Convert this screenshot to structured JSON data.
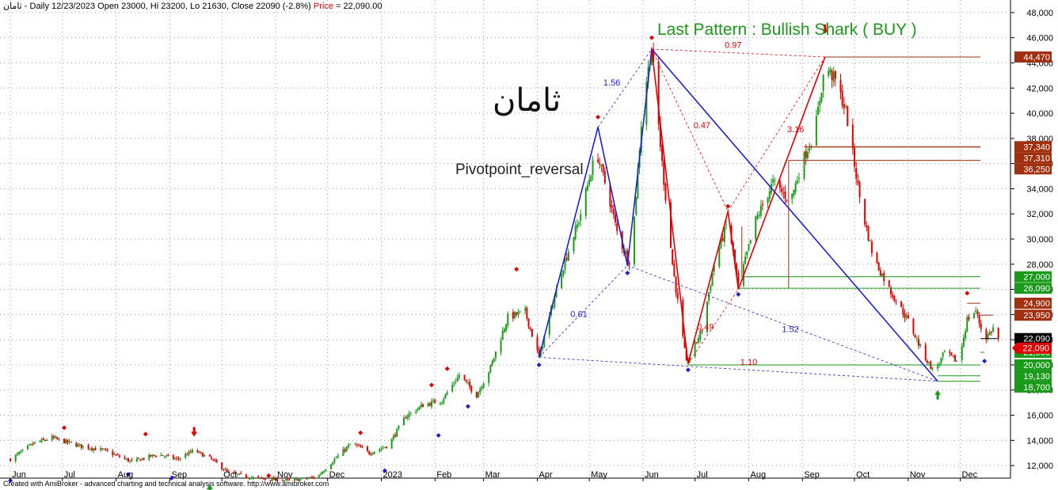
{
  "header": {
    "ticker": "ثامان",
    "info": " - Daily 12/23/2023 Open 23000, Hi 23200, Lo 21630, Close 22090 (-2.8%)",
    "price_label": "Price",
    "price_value": " = 22,090.00"
  },
  "title": "Last Pattern : Bullish Shark ( BUY )",
  "symbol_name": "ثامان",
  "subtitle": "Pivotpoint_reversal",
  "footer": "Created with AmiBroker - advanced charting and technical analysis software. http://www.amibroker.com",
  "colors": {
    "up": "#1a9a1a",
    "down": "#e00000",
    "blue_pattern": "#1f1fd0",
    "red_pattern": "#e00000",
    "support": "#1a9a1a",
    "resistance": "#a03010",
    "last_price": "#000000"
  },
  "chart_data": {
    "type": "candlestick",
    "y_range": [
      11000,
      49000
    ],
    "y_ticks": [
      12000,
      14000,
      16000,
      18000,
      20000,
      22000,
      24000,
      26000,
      28000,
      30000,
      32000,
      34000,
      36000,
      38000,
      40000,
      42000,
      44000,
      46000,
      48000
    ],
    "y_tick_labels": [
      "12,000",
      "14,000",
      "16,000",
      "18,000",
      "20,000",
      "22,000",
      "24,000",
      "26,000",
      "28,000",
      "30,000",
      "32,000",
      "34,000",
      "36,000",
      "38,000",
      "40,000",
      "42,000",
      "44,000",
      "46,000",
      "48,000"
    ],
    "x_axis": [
      {
        "date": "2022-06-01",
        "label": "Jun"
      },
      {
        "date": "2022-07-01",
        "label": "Jul"
      },
      {
        "date": "2022-08-01",
        "label": "Aug"
      },
      {
        "date": "2022-09-01",
        "label": "Sep"
      },
      {
        "date": "2022-10-01",
        "label": "Oct"
      },
      {
        "date": "2022-11-01",
        "label": "Nov"
      },
      {
        "date": "2022-12-01",
        "label": "Dec"
      },
      {
        "date": "2023-01-01",
        "label": "2023"
      },
      {
        "date": "2023-02-01",
        "label": "Feb"
      },
      {
        "date": "2023-03-01",
        "label": "Mar"
      },
      {
        "date": "2023-04-01",
        "label": "Apr"
      },
      {
        "date": "2023-05-01",
        "label": "May"
      },
      {
        "date": "2023-06-01",
        "label": "Jun"
      },
      {
        "date": "2023-07-01",
        "label": "Jul"
      },
      {
        "date": "2023-08-01",
        "label": "Aug"
      },
      {
        "date": "2023-09-01",
        "label": "Sep"
      },
      {
        "date": "2023-10-01",
        "label": "Oct"
      },
      {
        "date": "2023-11-01",
        "label": "Nov"
      },
      {
        "date": "2023-12-01",
        "label": "Dec"
      }
    ],
    "close_path": [
      [
        "2022-06-01",
        12500
      ],
      [
        "2022-06-15",
        13800
      ],
      [
        "2022-06-25",
        14200
      ],
      [
        "2022-07-10",
        13600
      ],
      [
        "2022-07-25",
        13200
      ],
      [
        "2022-08-10",
        12300
      ],
      [
        "2022-08-25",
        12900
      ],
      [
        "2022-09-05",
        12500
      ],
      [
        "2022-09-15",
        13200
      ],
      [
        "2022-09-25",
        12500
      ],
      [
        "2022-10-05",
        11400
      ],
      [
        "2022-10-20",
        11000
      ],
      [
        "2022-11-10",
        10800
      ],
      [
        "2022-11-25",
        11100
      ],
      [
        "2022-12-05",
        12500
      ],
      [
        "2022-12-15",
        13800
      ],
      [
        "2022-12-25",
        13000
      ],
      [
        "2023-01-05",
        13600
      ],
      [
        "2023-01-15",
        15900
      ],
      [
        "2023-01-25",
        16800
      ],
      [
        "2023-02-05",
        17200
      ],
      [
        "2023-02-15",
        19200
      ],
      [
        "2023-02-25",
        17600
      ],
      [
        "2023-03-05",
        19800
      ],
      [
        "2023-03-15",
        23800
      ],
      [
        "2023-03-25",
        24200
      ],
      [
        "2023-04-02",
        20600
      ],
      [
        "2023-04-15",
        27500
      ],
      [
        "2023-04-25",
        31500
      ],
      [
        "2023-05-05",
        37000
      ],
      [
        "2023-05-12",
        33500
      ],
      [
        "2023-05-18",
        30000
      ],
      [
        "2023-05-25",
        28000
      ],
      [
        "2023-06-01",
        41000
      ],
      [
        "2023-06-06",
        45100
      ],
      [
        "2023-06-12",
        36000
      ],
      [
        "2023-06-18",
        28000
      ],
      [
        "2023-06-26",
        20100
      ],
      [
        "2023-07-05",
        22800
      ],
      [
        "2023-07-12",
        28000
      ],
      [
        "2023-07-20",
        31500
      ],
      [
        "2023-07-26",
        26200
      ],
      [
        "2023-08-05",
        31500
      ],
      [
        "2023-08-15",
        34500
      ],
      [
        "2023-08-25",
        33000
      ],
      [
        "2023-09-01",
        36200
      ],
      [
        "2023-09-08",
        38500
      ],
      [
        "2023-09-14",
        43800
      ],
      [
        "2023-09-20",
        42600
      ],
      [
        "2023-09-26",
        40200
      ],
      [
        "2023-10-05",
        32500
      ],
      [
        "2023-10-12",
        28500
      ],
      [
        "2023-10-22",
        25800
      ],
      [
        "2023-11-01",
        23500
      ],
      [
        "2023-11-10",
        20800
      ],
      [
        "2023-11-16",
        19400
      ],
      [
        "2023-11-22",
        21000
      ],
      [
        "2023-11-30",
        20200
      ],
      [
        "2023-12-05",
        23600
      ],
      [
        "2023-12-10",
        24300
      ],
      [
        "2023-12-15",
        22000
      ],
      [
        "2023-12-20",
        22900
      ],
      [
        "2023-12-23",
        22090
      ]
    ],
    "pattern_blue": {
      "points": [
        [
          "2023-04-02",
          20600
        ],
        [
          "2023-05-06",
          38900
        ],
        [
          "2023-05-23",
          27900
        ],
        [
          "2023-06-06",
          45100
        ],
        [
          "2023-11-18",
          18700
        ]
      ],
      "ratios": [
        {
          "text": "1.56",
          "at": [
            "2023-05-14",
            42200
          ]
        },
        {
          "text": "0.61",
          "at": [
            "2023-04-25",
            23800
          ]
        },
        {
          "text": "1.52",
          "at": [
            "2023-08-25",
            22600
          ]
        }
      ]
    },
    "pattern_red": {
      "points": [
        [
          "2023-06-06",
          45100
        ],
        [
          "2023-06-27",
          20100
        ],
        [
          "2023-07-20",
          32200
        ],
        [
          "2023-07-26",
          26000
        ],
        [
          "2023-09-14",
          44470
        ]
      ],
      "ratios": [
        {
          "text": "0.97",
          "at": [
            "2023-07-23",
            45200
          ]
        },
        {
          "text": "0.47",
          "at": [
            "2023-07-05",
            38800
          ]
        },
        {
          "text": "3.16",
          "at": [
            "2023-08-28",
            38500
          ]
        },
        {
          "text": "0.49",
          "at": [
            "2023-07-07",
            22800
          ]
        },
        {
          "text": "1.10",
          "at": [
            "2023-08-01",
            20000
          ]
        }
      ]
    },
    "levels": [
      {
        "value": 44470,
        "label": "44,470",
        "color": "#a03010",
        "from": "2023-09-14"
      },
      {
        "value": 37340,
        "label": "37,340",
        "color": "#a03010",
        "from": "2023-09-02"
      },
      {
        "value": 37310,
        "label": "37,310",
        "color": "#a03010",
        "from": "2023-09-02"
      },
      {
        "value": 36250,
        "label": "36,250",
        "color": "#a03010",
        "from": "2023-08-24"
      },
      {
        "value": 27000,
        "label": "27,000",
        "color": "#1a9a1a",
        "from": "2023-07-28"
      },
      {
        "value": 26090,
        "label": "26,090",
        "color": "#1a9a1a",
        "from": "2023-07-26"
      },
      {
        "value": 24900,
        "label": "24,900",
        "color": "#a03010",
        "from": "2023-12-05"
      },
      {
        "value": 23950,
        "label": "23,950",
        "color": "#a03010",
        "from": "2023-12-20"
      },
      {
        "value": 22090,
        "label": "22,090",
        "color": "#000000",
        "from": "2023-12-23"
      },
      {
        "value": 21000,
        "label": "21,000",
        "color": "#1a9a1a",
        "from": "2023-12-15"
      },
      {
        "value": 20000,
        "label": "20,000",
        "color": "#1a9a1a",
        "from": "2023-06-27"
      },
      {
        "value": 19130,
        "label": "19,130",
        "color": "#1a9a1a",
        "from": "2023-11-18"
      },
      {
        "value": 18700,
        "label": "18,700",
        "color": "#1a9a1a",
        "from": "2023-11-18"
      }
    ],
    "price_marker": {
      "value": 22090,
      "label": "22,090"
    },
    "pivots_high": [
      [
        "2022-07-02",
        15000
      ],
      [
        "2022-08-18",
        14500
      ],
      [
        "2022-10-28",
        11200
      ],
      [
        "2022-12-20",
        14600
      ],
      [
        "2023-02-08",
        19700
      ],
      [
        "2023-01-30",
        18400
      ],
      [
        "2023-03-20",
        27600
      ],
      [
        "2023-05-06",
        39700
      ],
      [
        "2023-06-06",
        46000
      ],
      [
        "2023-07-20",
        32600
      ],
      [
        "2023-12-05",
        25700
      ]
    ],
    "pivots_low": [
      [
        "2022-06-01",
        10800
      ],
      [
        "2022-08-08",
        11300
      ],
      [
        "2022-09-02",
        11000
      ],
      [
        "2023-01-03",
        11600
      ],
      [
        "2023-02-03",
        14400
      ],
      [
        "2023-02-20",
        16700
      ],
      [
        "2023-04-02",
        20000
      ],
      [
        "2023-05-23",
        27300
      ],
      [
        "2023-06-27",
        19600
      ],
      [
        "2023-07-26",
        25600
      ],
      [
        "2023-12-15",
        20300
      ]
    ],
    "arrows_up": [
      [
        "2022-09-24",
        10500
      ],
      [
        "2023-11-18",
        18000
      ]
    ],
    "arrows_down": [
      [
        "2022-09-15",
        14300
      ],
      [
        "2023-09-14",
        46300
      ]
    ]
  }
}
